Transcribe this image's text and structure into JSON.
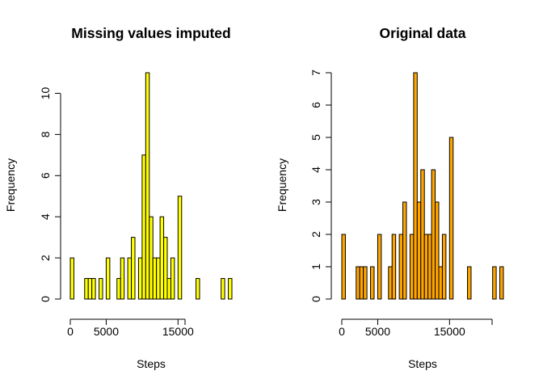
{
  "chart_data": [
    {
      "type": "bar",
      "title": "Missing values imputed",
      "xlabel": "Steps",
      "ylabel": "Frequency",
      "bar_color": "#FFFF00",
      "xlim": [
        0,
        22500
      ],
      "ylim": [
        0,
        11
      ],
      "x_ticks": [
        0,
        5000,
        15000
      ],
      "x_tick_labels": [
        "0",
        "5000",
        "15000"
      ],
      "y_ticks": [
        0,
        2,
        4,
        6,
        8,
        10
      ],
      "y_tick_labels": [
        "0",
        "2",
        "4",
        "6",
        "8",
        "10"
      ],
      "bin_width": 500,
      "bins_start": [
        0,
        500,
        1000,
        1500,
        2000,
        2500,
        3000,
        3500,
        4000,
        4500,
        5000,
        5500,
        6000,
        6500,
        7000,
        7500,
        8000,
        8500,
        9000,
        9500,
        10000,
        10500,
        11000,
        11500,
        12000,
        12500,
        13000,
        13500,
        14000,
        14500,
        15000,
        15500,
        16000,
        16500,
        17000,
        17500,
        18000,
        18500,
        19000,
        19500,
        20000,
        20500,
        21000,
        21500,
        22000
      ],
      "values": [
        2,
        0,
        0,
        0,
        1,
        1,
        1,
        0,
        1,
        0,
        2,
        0,
        0,
        1,
        2,
        0,
        2,
        3,
        0,
        2,
        7,
        11,
        4,
        2,
        2,
        4,
        3,
        1,
        2,
        0,
        5,
        0,
        0,
        0,
        0,
        1,
        0,
        0,
        0,
        0,
        0,
        0,
        1,
        0,
        1
      ]
    },
    {
      "type": "bar",
      "title": "Original data",
      "xlabel": "Steps",
      "ylabel": "Frequency",
      "bar_color": "#FFA500",
      "xlim": [
        0,
        22500
      ],
      "ylim": [
        0,
        7
      ],
      "x_ticks": [
        0,
        5000,
        15000
      ],
      "x_tick_labels": [
        "0",
        "5000",
        "15000"
      ],
      "y_ticks": [
        0,
        1,
        2,
        3,
        4,
        5,
        6,
        7
      ],
      "y_tick_labels": [
        "0",
        "1",
        "2",
        "3",
        "4",
        "5",
        "6",
        "7"
      ],
      "bin_width": 500,
      "bins_start": [
        0,
        500,
        1000,
        1500,
        2000,
        2500,
        3000,
        3500,
        4000,
        4500,
        5000,
        5500,
        6000,
        6500,
        7000,
        7500,
        8000,
        8500,
        9000,
        9500,
        10000,
        10500,
        11000,
        11500,
        12000,
        12500,
        13000,
        13500,
        14000,
        14500,
        15000,
        15500,
        16000,
        16500,
        17000,
        17500,
        18000,
        18500,
        19000,
        19500,
        20000,
        20500,
        21000,
        21500,
        22000
      ],
      "values": [
        2,
        0,
        0,
        0,
        1,
        1,
        1,
        0,
        1,
        0,
        2,
        0,
        0,
        1,
        2,
        0,
        2,
        3,
        0,
        2,
        7,
        3,
        4,
        2,
        2,
        4,
        3,
        1,
        2,
        0,
        5,
        0,
        0,
        0,
        0,
        1,
        0,
        0,
        0,
        0,
        0,
        0,
        1,
        0,
        1
      ]
    }
  ]
}
